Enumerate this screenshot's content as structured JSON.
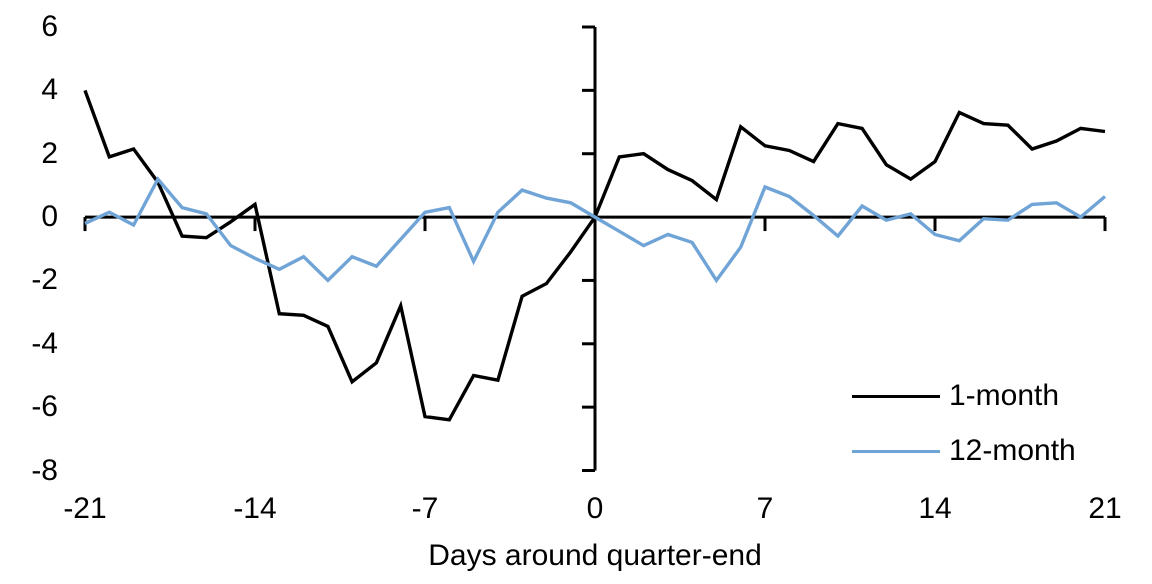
{
  "chart_data": {
    "type": "line",
    "title": "",
    "xlabel": "Days around quarter-end",
    "ylabel": "",
    "xlim": [
      -21,
      21
    ],
    "ylim": [
      -8,
      6
    ],
    "x_ticks": [
      -21,
      -14,
      -7,
      0,
      7,
      14,
      21
    ],
    "y_ticks": [
      6,
      4,
      2,
      0,
      -2,
      -4,
      -6,
      -8
    ],
    "grid": false,
    "legend_position": "inside-bottom-right",
    "x": [
      -21,
      -20,
      -19,
      -18,
      -17,
      -16,
      -15,
      -14,
      -13,
      -12,
      -11,
      -10,
      -9,
      -8,
      -7,
      -6,
      -5,
      -4,
      -3,
      -2,
      -1,
      0,
      1,
      2,
      3,
      4,
      5,
      6,
      7,
      8,
      9,
      10,
      11,
      12,
      13,
      14,
      15,
      16,
      17,
      18,
      19,
      20,
      21
    ],
    "series": [
      {
        "name": "1-month",
        "color": "#000000",
        "values": [
          4.0,
          1.9,
          2.15,
          1.1,
          -0.6,
          -0.65,
          -0.15,
          0.4,
          -3.05,
          -3.1,
          -3.45,
          -5.2,
          -4.6,
          -2.8,
          -6.3,
          -6.4,
          -5.0,
          -5.15,
          -2.5,
          -2.1,
          -1.1,
          0.0,
          1.9,
          2.0,
          1.5,
          1.15,
          0.55,
          2.85,
          2.25,
          2.1,
          1.75,
          2.95,
          2.8,
          1.65,
          1.2,
          1.75,
          3.3,
          2.95,
          2.9,
          2.15,
          2.4,
          2.8,
          2.7
        ]
      },
      {
        "name": "12-month",
        "color": "#70A4D7",
        "values": [
          -0.2,
          0.15,
          -0.25,
          1.2,
          0.3,
          0.1,
          -0.9,
          -1.3,
          -1.65,
          -1.25,
          -2.0,
          -1.25,
          -1.55,
          -0.7,
          0.15,
          0.3,
          -1.4,
          0.15,
          0.85,
          0.6,
          0.45,
          0.0,
          -0.45,
          -0.9,
          -0.55,
          -0.8,
          -2.0,
          -0.95,
          0.95,
          0.65,
          0.05,
          -0.6,
          0.35,
          -0.1,
          0.1,
          -0.55,
          -0.75,
          -0.05,
          -0.1,
          0.4,
          0.45,
          0.0,
          0.65
        ]
      }
    ]
  },
  "legend": {
    "items": [
      {
        "label": "1-month",
        "color": "#000000"
      },
      {
        "label": "12-month",
        "color": "#70A4D7"
      }
    ]
  },
  "axis_color": "#000000"
}
